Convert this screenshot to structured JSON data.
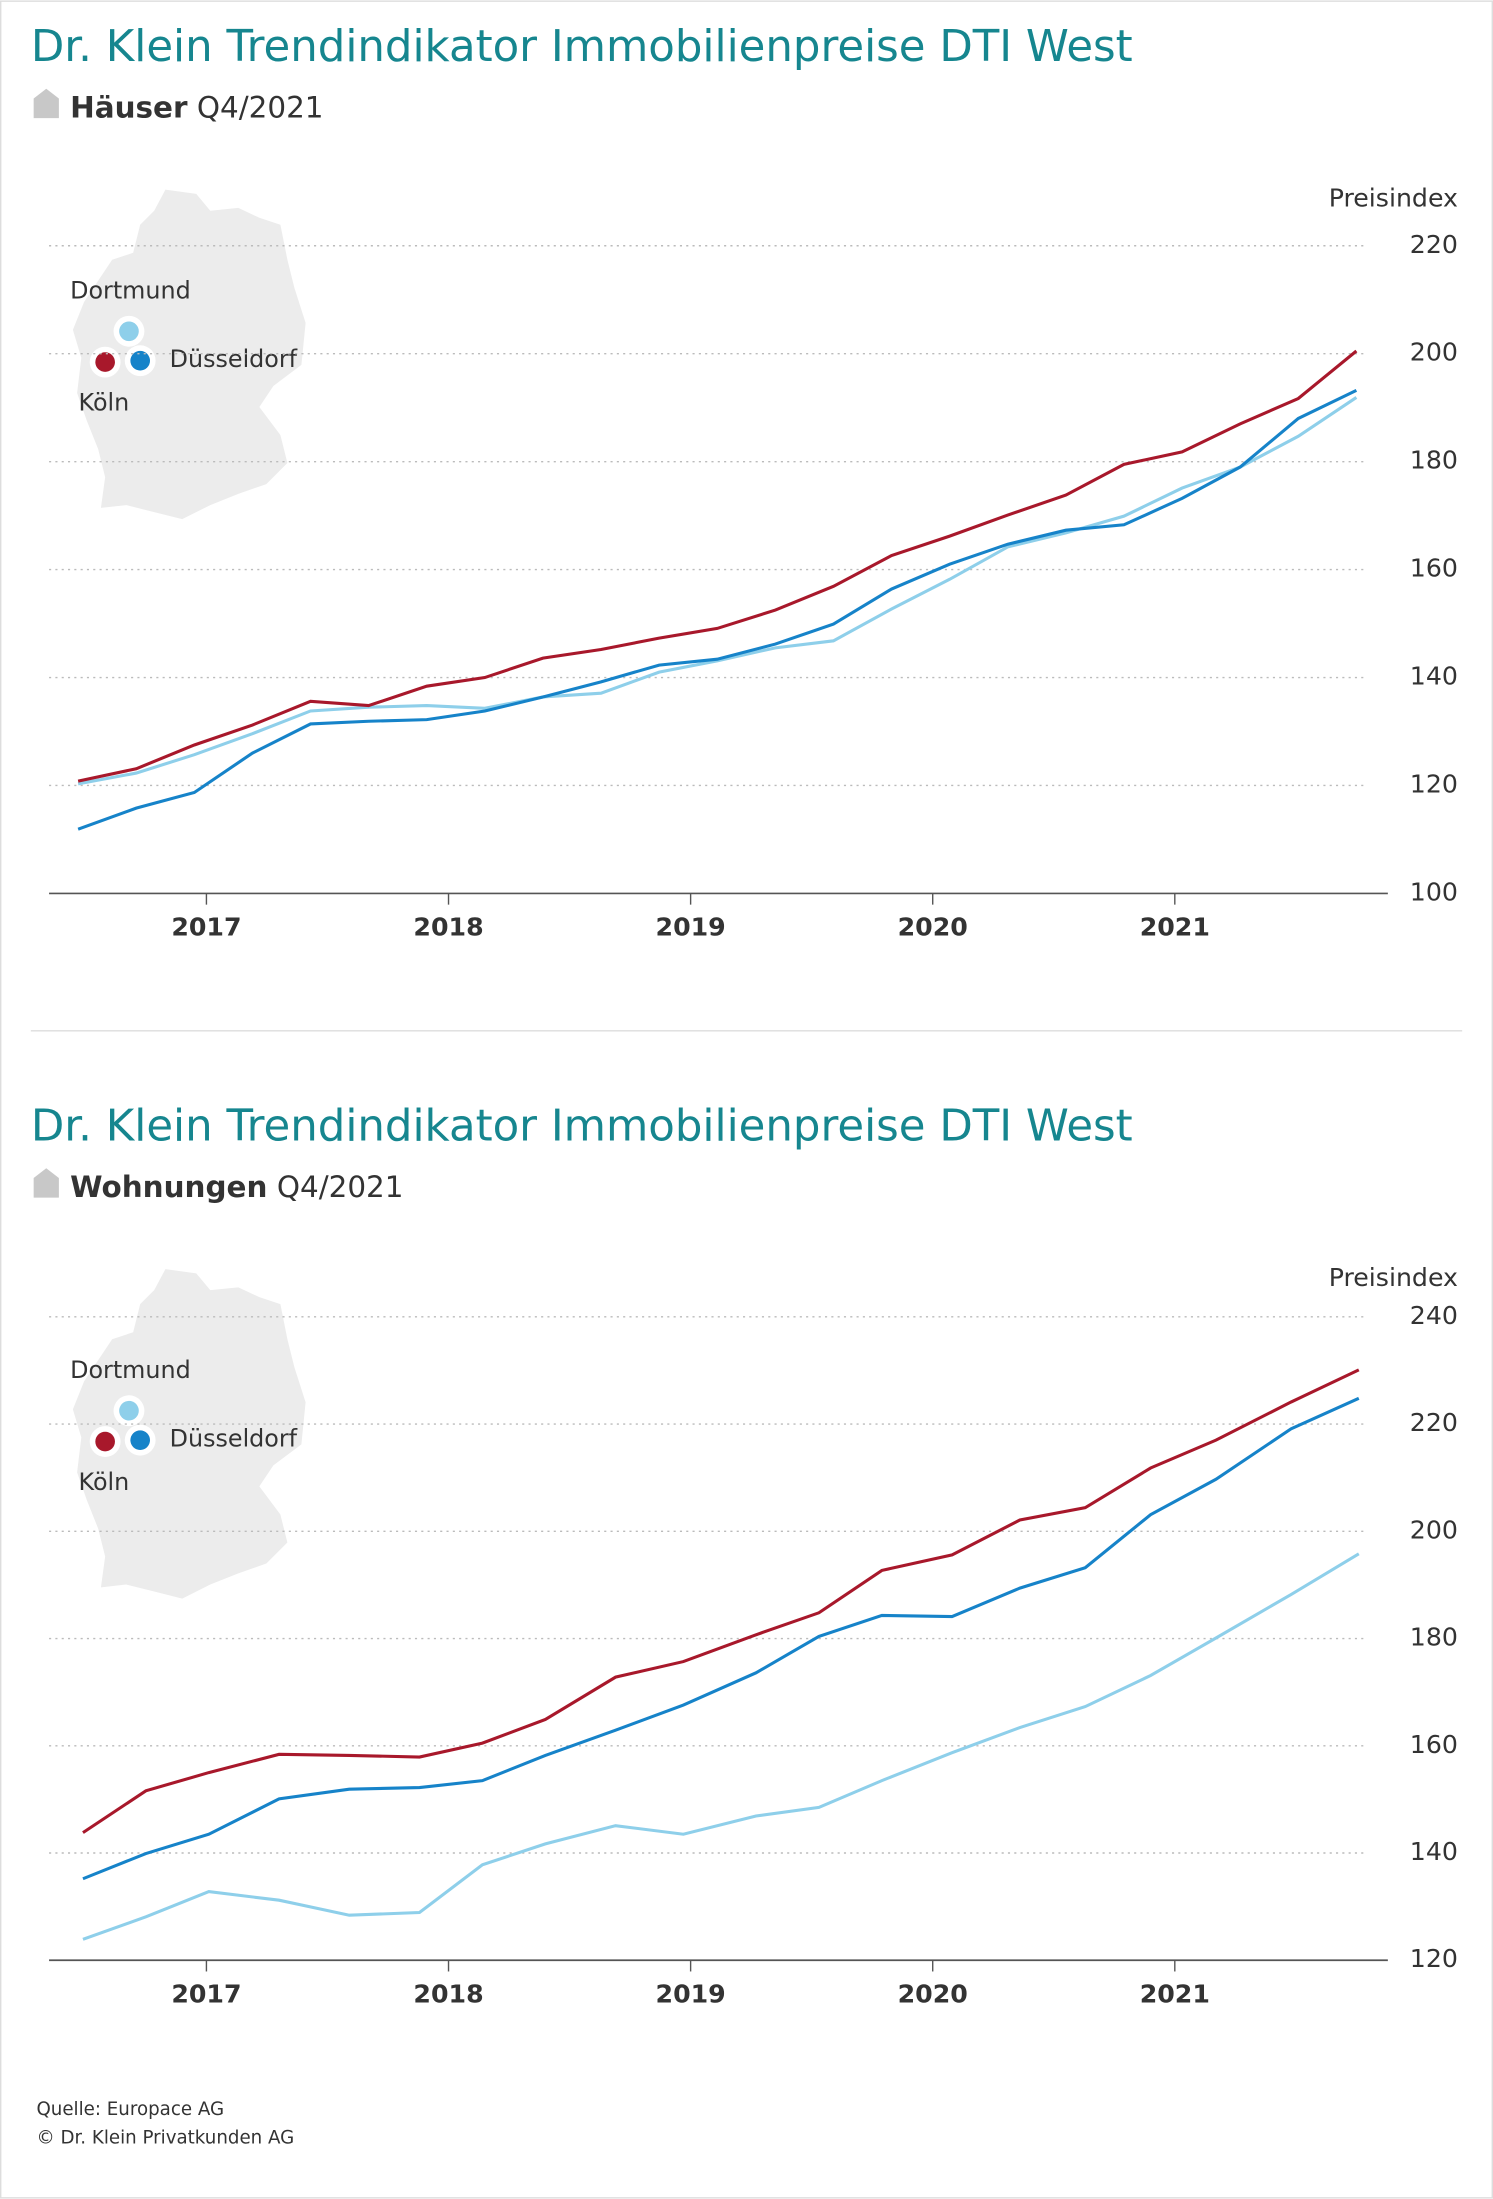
{
  "chart_data": [
    {
      "type": "line",
      "title": "Dr. Klein Trendindikator Immobilienpreise DTI West",
      "subtitle": "Häuser",
      "period": "Q4/2021",
      "ylabel": "Preisindex",
      "x": [
        2016.47,
        2016.71,
        2016.95,
        2017.19,
        2017.43,
        2017.67,
        2017.91,
        2018.15,
        2018.39,
        2018.63,
        2018.87,
        2019.11,
        2019.35,
        2019.59,
        2019.83,
        2020.07,
        2020.31,
        2020.55,
        2020.79,
        2021.03,
        2021.27,
        2021.51,
        2021.75
      ],
      "series": [
        {
          "name": "Dortmund",
          "color": "#8ecfea",
          "values": [
            120.3,
            122.3,
            125.7,
            129.6,
            133.8,
            134.5,
            134.8,
            134.3,
            136.4,
            137.1,
            141,
            143.1,
            145.5,
            146.8,
            152.7,
            158.2,
            164.2,
            166.8,
            169.9,
            175.1,
            179,
            184.7,
            191.9
          ]
        },
        {
          "name": "Düsseldorf",
          "color": "#1683c9",
          "values": [
            111.9,
            115.8,
            118.7,
            126,
            131.4,
            131.9,
            132.2,
            133.8,
            136.4,
            139.2,
            142.3,
            143.4,
            146.2,
            149.9,
            156.4,
            161,
            164.7,
            167.3,
            168.3,
            173.2,
            179,
            188,
            193.2
          ]
        },
        {
          "name": "Köln",
          "color": "#a8182b",
          "values": [
            120.8,
            123.1,
            127.5,
            131.2,
            135.6,
            134.8,
            138.4,
            140,
            143.6,
            145.2,
            147.3,
            149.1,
            152.5,
            156.9,
            162.6,
            166.2,
            170.1,
            173.8,
            179.5,
            181.8,
            187,
            191.7,
            200.5
          ]
        }
      ],
      "xlim": [
        2016.35,
        2021.88
      ],
      "xticks": [
        2017,
        2018,
        2019,
        2020,
        2021
      ],
      "ylim": [
        100,
        220
      ],
      "yticks": [
        100,
        120,
        140,
        160,
        180,
        200,
        220
      ],
      "grid": true
    },
    {
      "type": "line",
      "title": "Dr. Klein Trendindikator Immobilienpreise DTI West",
      "subtitle": "Wohnungen",
      "period": "Q4/2021",
      "ylabel": "Preisindex",
      "x": [
        2016.49,
        2016.75,
        2017.01,
        2017.3,
        2017.59,
        2017.88,
        2018.14,
        2018.4,
        2018.69,
        2018.97,
        2019.27,
        2019.53,
        2019.79,
        2020.08,
        2020.36,
        2020.63,
        2020.9,
        2021.17,
        2021.48,
        2021.76
      ],
      "series": [
        {
          "name": "Dortmund",
          "color": "#8ecfea",
          "values": [
            123.9,
            128.1,
            132.8,
            131.2,
            128.4,
            128.9,
            137.8,
            141.7,
            145.1,
            143.5,
            146.9,
            148.5,
            153.5,
            158.7,
            163.4,
            167.3,
            173.1,
            180.1,
            188.2,
            195.8
          ]
        },
        {
          "name": "Düsseldorf",
          "color": "#1683c9",
          "values": [
            135.2,
            139.9,
            143.5,
            150.1,
            151.9,
            152.2,
            153.5,
            158.2,
            162.9,
            167.6,
            173.6,
            180.4,
            184.3,
            184.1,
            189.4,
            193.2,
            203.1,
            209.7,
            219.1,
            224.8
          ]
        },
        {
          "name": "Köln",
          "color": "#a8182b",
          "values": [
            143.8,
            151.6,
            155,
            158.4,
            158.2,
            157.9,
            160.5,
            164.9,
            172.8,
            175.7,
            180.7,
            184.8,
            192.7,
            195.6,
            202.1,
            204.4,
            211.8,
            217,
            224.1,
            230.1
          ]
        }
      ],
      "xlim": [
        2016.35,
        2021.88
      ],
      "xticks": [
        2017,
        2018,
        2019,
        2020,
        2021
      ],
      "ylim": [
        120,
        240
      ],
      "yticks": [
        120,
        140,
        160,
        180,
        200,
        220,
        240
      ],
      "grid": true
    }
  ],
  "footer": {
    "source": "Quelle: Europace AG",
    "copyright": "© Dr. Klein Privatkunden AG"
  }
}
